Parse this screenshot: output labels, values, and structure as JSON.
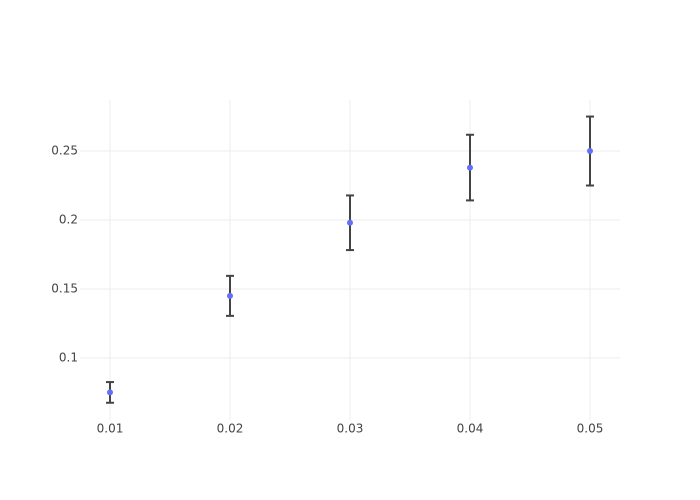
{
  "chart_data": {
    "type": "scatter",
    "x": [
      0.01,
      0.02,
      0.03,
      0.04,
      0.05
    ],
    "values": [
      0.075,
      0.145,
      0.198,
      0.238,
      0.25
    ],
    "errors": [
      0.0075,
      0.0145,
      0.0198,
      0.0238,
      0.025
    ],
    "color": "#636efa",
    "error_color": "#444444",
    "xlim": [
      0.0075,
      0.0525
    ],
    "ylim": [
      0.055,
      0.287
    ],
    "xticks": [
      0.01,
      0.02,
      0.03,
      0.04,
      0.05
    ],
    "yticks": [
      0.1,
      0.15,
      0.2,
      0.25
    ],
    "grid": true
  }
}
